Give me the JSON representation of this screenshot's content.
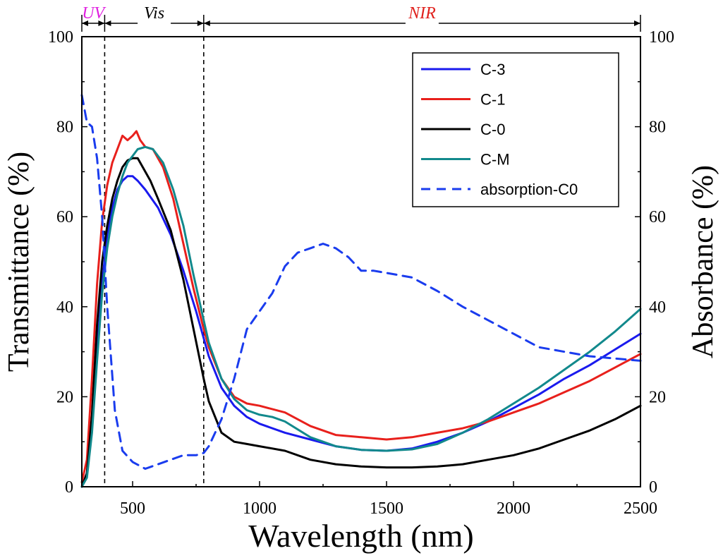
{
  "chart_data": {
    "type": "line",
    "xlabel": "Wavelength (nm)",
    "ylabel": "Transmittance (%)",
    "y2label": "Absorbance (%)",
    "xlim": [
      300,
      2500
    ],
    "ylim": [
      0,
      100
    ],
    "y2lim": [
      0,
      100
    ],
    "xticks": [
      500,
      1000,
      1500,
      2000,
      2500
    ],
    "yticks": [
      0,
      20,
      40,
      60,
      80,
      100
    ],
    "grid": false,
    "legend_position": "top-right",
    "regions": [
      {
        "label": "UV",
        "from": 300,
        "to": 390,
        "color": "#e020e0"
      },
      {
        "label": "Vis",
        "from": 390,
        "to": 780,
        "color": "#000000"
      },
      {
        "label": "NIR",
        "from": 780,
        "to": 2500,
        "color": "#e0201c"
      }
    ],
    "region_boundaries": [
      390,
      780
    ],
    "series": [
      {
        "name": "C-3",
        "color": "#1a1aee",
        "dash": false,
        "axis": "left",
        "points": [
          [
            300,
            0
          ],
          [
            320,
            3
          ],
          [
            340,
            14
          ],
          [
            360,
            30
          ],
          [
            380,
            45
          ],
          [
            400,
            56
          ],
          [
            420,
            62
          ],
          [
            440,
            66
          ],
          [
            460,
            68
          ],
          [
            480,
            69
          ],
          [
            500,
            69
          ],
          [
            520,
            68
          ],
          [
            550,
            66
          ],
          [
            600,
            62
          ],
          [
            650,
            56
          ],
          [
            700,
            48
          ],
          [
            750,
            39
          ],
          [
            780,
            33
          ],
          [
            800,
            29
          ],
          [
            850,
            22
          ],
          [
            900,
            18
          ],
          [
            950,
            15.5
          ],
          [
            1000,
            14
          ],
          [
            1100,
            12
          ],
          [
            1200,
            10.5
          ],
          [
            1300,
            9
          ],
          [
            1400,
            8.2
          ],
          [
            1500,
            8
          ],
          [
            1600,
            8.5
          ],
          [
            1700,
            10
          ],
          [
            1800,
            12
          ],
          [
            1900,
            14.5
          ],
          [
            2000,
            17.5
          ],
          [
            2100,
            20.5
          ],
          [
            2200,
            24
          ],
          [
            2300,
            27
          ],
          [
            2400,
            30.5
          ],
          [
            2500,
            34
          ]
        ]
      },
      {
        "name": "C-1",
        "color": "#e8201c",
        "dash": false,
        "axis": "left",
        "points": [
          [
            300,
            1
          ],
          [
            320,
            6
          ],
          [
            340,
            24
          ],
          [
            360,
            45
          ],
          [
            380,
            59
          ],
          [
            400,
            67
          ],
          [
            420,
            72
          ],
          [
            440,
            75
          ],
          [
            460,
            78
          ],
          [
            480,
            77
          ],
          [
            500,
            78
          ],
          [
            515,
            79
          ],
          [
            530,
            77
          ],
          [
            550,
            75.5
          ],
          [
            580,
            75
          ],
          [
            620,
            71
          ],
          [
            660,
            64
          ],
          [
            700,
            54
          ],
          [
            740,
            44
          ],
          [
            780,
            35
          ],
          [
            800,
            31
          ],
          [
            850,
            24
          ],
          [
            900,
            20
          ],
          [
            950,
            18.5
          ],
          [
            1000,
            18
          ],
          [
            1100,
            16.5
          ],
          [
            1200,
            13.5
          ],
          [
            1300,
            11.5
          ],
          [
            1400,
            11
          ],
          [
            1500,
            10.5
          ],
          [
            1600,
            11
          ],
          [
            1700,
            12
          ],
          [
            1800,
            13
          ],
          [
            1900,
            14.5
          ],
          [
            2000,
            16.5
          ],
          [
            2100,
            18.5
          ],
          [
            2200,
            21
          ],
          [
            2300,
            23.5
          ],
          [
            2400,
            26.5
          ],
          [
            2500,
            29.5
          ]
        ]
      },
      {
        "name": "C-0",
        "color": "#000000",
        "dash": false,
        "axis": "left",
        "points": [
          [
            300,
            0
          ],
          [
            320,
            3
          ],
          [
            340,
            16
          ],
          [
            360,
            36
          ],
          [
            380,
            50
          ],
          [
            400,
            58
          ],
          [
            420,
            64
          ],
          [
            440,
            68
          ],
          [
            460,
            71
          ],
          [
            480,
            72.5
          ],
          [
            500,
            73
          ],
          [
            520,
            73
          ],
          [
            540,
            71
          ],
          [
            570,
            68
          ],
          [
            600,
            64
          ],
          [
            650,
            57
          ],
          [
            700,
            46
          ],
          [
            740,
            35
          ],
          [
            780,
            24
          ],
          [
            800,
            19
          ],
          [
            850,
            12
          ],
          [
            900,
            10
          ],
          [
            950,
            9.5
          ],
          [
            1000,
            9
          ],
          [
            1100,
            8
          ],
          [
            1200,
            6
          ],
          [
            1300,
            5
          ],
          [
            1400,
            4.5
          ],
          [
            1500,
            4.3
          ],
          [
            1600,
            4.3
          ],
          [
            1700,
            4.5
          ],
          [
            1800,
            5
          ],
          [
            1900,
            6
          ],
          [
            2000,
            7
          ],
          [
            2100,
            8.5
          ],
          [
            2200,
            10.5
          ],
          [
            2300,
            12.5
          ],
          [
            2400,
            15
          ],
          [
            2500,
            18
          ]
        ]
      },
      {
        "name": "C-M",
        "color": "#12898c",
        "dash": false,
        "axis": "left",
        "points": [
          [
            300,
            0
          ],
          [
            320,
            2
          ],
          [
            340,
            12
          ],
          [
            360,
            28
          ],
          [
            380,
            43
          ],
          [
            400,
            53
          ],
          [
            420,
            60
          ],
          [
            440,
            65
          ],
          [
            460,
            69
          ],
          [
            480,
            72
          ],
          [
            500,
            73.5
          ],
          [
            520,
            75
          ],
          [
            550,
            75.5
          ],
          [
            580,
            75
          ],
          [
            620,
            72
          ],
          [
            660,
            66
          ],
          [
            700,
            58
          ],
          [
            740,
            47
          ],
          [
            780,
            37
          ],
          [
            800,
            32
          ],
          [
            850,
            24
          ],
          [
            900,
            19.5
          ],
          [
            950,
            17
          ],
          [
            1000,
            16
          ],
          [
            1050,
            15.5
          ],
          [
            1100,
            14.5
          ],
          [
            1200,
            11
          ],
          [
            1300,
            9
          ],
          [
            1400,
            8.2
          ],
          [
            1500,
            8
          ],
          [
            1600,
            8.3
          ],
          [
            1700,
            9.5
          ],
          [
            1800,
            12
          ],
          [
            1900,
            15
          ],
          [
            2000,
            18.5
          ],
          [
            2100,
            22
          ],
          [
            2200,
            26
          ],
          [
            2300,
            30
          ],
          [
            2400,
            34.5
          ],
          [
            2500,
            39.5
          ]
        ]
      },
      {
        "name": "absorption-C0",
        "color": "#1a3cee",
        "dash": true,
        "axis": "right",
        "points": [
          [
            300,
            87
          ],
          [
            320,
            81
          ],
          [
            340,
            80
          ],
          [
            360,
            73
          ],
          [
            380,
            60
          ],
          [
            400,
            40
          ],
          [
            430,
            17
          ],
          [
            460,
            8
          ],
          [
            500,
            5.5
          ],
          [
            550,
            4
          ],
          [
            600,
            5
          ],
          [
            650,
            6
          ],
          [
            700,
            7
          ],
          [
            750,
            7
          ],
          [
            780,
            7.5
          ],
          [
            800,
            9
          ],
          [
            850,
            15
          ],
          [
            900,
            24
          ],
          [
            950,
            35
          ],
          [
            1000,
            39
          ],
          [
            1050,
            43
          ],
          [
            1100,
            49
          ],
          [
            1150,
            52
          ],
          [
            1200,
            53
          ],
          [
            1250,
            54
          ],
          [
            1300,
            53
          ],
          [
            1350,
            51
          ],
          [
            1400,
            48
          ],
          [
            1450,
            48
          ],
          [
            1500,
            47.5
          ],
          [
            1600,
            46.5
          ],
          [
            1700,
            43.5
          ],
          [
            1800,
            40
          ],
          [
            1900,
            37
          ],
          [
            2000,
            34
          ],
          [
            2100,
            31
          ],
          [
            2200,
            30
          ],
          [
            2300,
            29
          ],
          [
            2400,
            28.5
          ],
          [
            2500,
            28
          ]
        ]
      }
    ]
  }
}
